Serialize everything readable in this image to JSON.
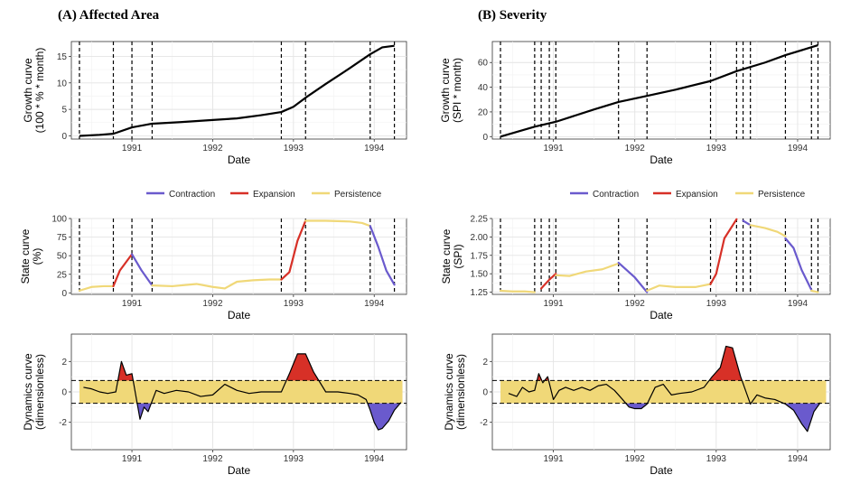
{
  "colors": {
    "contraction": "#6a5acd",
    "expansion": "#d73027",
    "persistence": "#f0d878",
    "band": "#f0d878"
  },
  "legend": {
    "items": [
      {
        "key": "contraction",
        "label": "Contraction"
      },
      {
        "key": "expansion",
        "label": "Expansion"
      },
      {
        "key": "persistence",
        "label": "Persistence"
      }
    ]
  },
  "chart_data": [
    {
      "panel": "A",
      "title": "(A)  Affected Area",
      "type": "line",
      "role": "growth",
      "xlabel": "Date",
      "ylabel": [
        "Growth curve",
        "(100 * % * month)"
      ],
      "xlim": [
        1990.25,
        1994.4
      ],
      "ylim": [
        -0.6,
        17.8
      ],
      "yticks": [
        0,
        5,
        10,
        15
      ],
      "xticks": [
        1991,
        1992,
        1993,
        1994
      ],
      "vlines": [
        1990.35,
        1990.77,
        1991.0,
        1991.25,
        1992.85,
        1993.15,
        1993.95,
        1994.25
      ],
      "x": [
        1990.35,
        1990.6,
        1990.77,
        1991.0,
        1991.25,
        1991.6,
        1992.0,
        1992.3,
        1992.6,
        1992.85,
        1993.0,
        1993.15,
        1993.4,
        1993.7,
        1993.95,
        1994.1,
        1994.25
      ],
      "y": [
        0,
        0.2,
        0.4,
        1.6,
        2.3,
        2.6,
        3.0,
        3.3,
        3.9,
        4.5,
        5.5,
        7.2,
        9.8,
        12.8,
        15.4,
        16.7,
        17.0
      ]
    },
    {
      "panel": "A",
      "type": "line",
      "role": "state",
      "xlabel": "Date",
      "ylabel": [
        "State curve",
        "(%)"
      ],
      "xlim": [
        1990.25,
        1994.4
      ],
      "ylim": [
        -2,
        100
      ],
      "yticks": [
        0,
        25,
        50,
        75,
        100
      ],
      "xticks": [
        1991,
        1992,
        1993,
        1994
      ],
      "vlines": [
        1990.35,
        1990.77,
        1991.0,
        1991.25,
        1992.85,
        1993.15,
        1993.95,
        1994.25
      ],
      "segments": [
        {
          "state": "persistence",
          "x": [
            1990.35,
            1990.5,
            1990.65,
            1990.77
          ],
          "y": [
            3,
            8,
            9,
            9
          ]
        },
        {
          "state": "expansion",
          "x": [
            1990.77,
            1990.85,
            1991.0
          ],
          "y": [
            9,
            30,
            52
          ]
        },
        {
          "state": "contraction",
          "x": [
            1991.0,
            1991.12,
            1991.25
          ],
          "y": [
            52,
            30,
            10
          ]
        },
        {
          "state": "persistence",
          "x": [
            1991.25,
            1991.5,
            1991.8,
            1992.0,
            1992.15,
            1992.3,
            1992.5,
            1992.7,
            1992.85
          ],
          "y": [
            10,
            9,
            12,
            8,
            6,
            15,
            17,
            18,
            18
          ]
        },
        {
          "state": "expansion",
          "x": [
            1992.85,
            1992.95,
            1993.05,
            1993.15
          ],
          "y": [
            18,
            28,
            70,
            97
          ]
        },
        {
          "state": "persistence",
          "x": [
            1993.15,
            1993.4,
            1993.7,
            1993.85,
            1993.95
          ],
          "y": [
            97,
            97,
            96,
            94,
            90
          ]
        },
        {
          "state": "contraction",
          "x": [
            1993.95,
            1994.05,
            1994.15,
            1994.25
          ],
          "y": [
            90,
            62,
            30,
            11
          ]
        }
      ]
    },
    {
      "panel": "A",
      "type": "area",
      "role": "dynamics",
      "xlabel": "Date",
      "ylabel": [
        "Dynamics curve",
        "(dimensionless)"
      ],
      "xlim": [
        1990.25,
        1994.4
      ],
      "ylim": [
        -3.8,
        3.8
      ],
      "yticks": [
        -2,
        0,
        2
      ],
      "xticks": [
        1991,
        1992,
        1993,
        1994
      ],
      "band": [
        -0.75,
        0.75
      ],
      "band_x": [
        1990.35,
        1994.35
      ],
      "x": [
        1990.4,
        1990.5,
        1990.6,
        1990.7,
        1990.8,
        1990.87,
        1990.93,
        1991.0,
        1991.05,
        1991.1,
        1991.15,
        1991.2,
        1991.3,
        1991.4,
        1991.55,
        1991.7,
        1991.85,
        1992.0,
        1992.15,
        1992.3,
        1992.45,
        1992.6,
        1992.75,
        1992.85,
        1992.95,
        1993.05,
        1993.15,
        1993.25,
        1993.4,
        1993.55,
        1993.7,
        1993.8,
        1993.9,
        1993.95,
        1994.0,
        1994.05,
        1994.1,
        1994.18,
        1994.25,
        1994.33
      ],
      "y": [
        0.3,
        0.2,
        0.0,
        -0.1,
        0.0,
        2.0,
        1.1,
        1.2,
        -0.3,
        -1.8,
        -1.0,
        -1.3,
        0.1,
        -0.1,
        0.1,
        0.0,
        -0.3,
        -0.2,
        0.5,
        0.1,
        -0.1,
        0.0,
        0.0,
        0.0,
        1.2,
        2.5,
        2.5,
        1.3,
        0.0,
        0.0,
        -0.1,
        -0.2,
        -0.5,
        -1.2,
        -2.0,
        -2.5,
        -2.4,
        -1.9,
        -1.2,
        -0.7
      ]
    },
    {
      "panel": "B",
      "title": "(B)  Severity",
      "type": "line",
      "role": "growth",
      "xlabel": "Date",
      "ylabel": [
        "Growth curve",
        "(SPI * month)"
      ],
      "xlim": [
        1990.25,
        1994.4
      ],
      "ylim": [
        -2,
        77
      ],
      "yticks": [
        0,
        20,
        40,
        60
      ],
      "xticks": [
        1991,
        1992,
        1993,
        1994
      ],
      "vlines": [
        1990.35,
        1990.77,
        1990.85,
        1990.95,
        1991.03,
        1991.8,
        1992.15,
        1992.93,
        1993.25,
        1993.33,
        1993.42,
        1993.85,
        1994.17,
        1994.25
      ],
      "x": [
        1990.35,
        1990.77,
        1991.03,
        1991.5,
        1991.8,
        1992.15,
        1992.5,
        1992.93,
        1993.25,
        1993.6,
        1993.85,
        1994.1,
        1994.25
      ],
      "y": [
        0,
        8,
        12,
        22,
        28,
        33,
        38,
        45,
        53,
        60,
        66,
        71,
        74
      ]
    },
    {
      "panel": "B",
      "type": "line",
      "role": "state",
      "xlabel": "Date",
      "ylabel": [
        "State curve",
        "(SPI)"
      ],
      "xlim": [
        1990.25,
        1994.4
      ],
      "ylim": [
        1.22,
        2.25
      ],
      "yticks": [
        1.25,
        1.5,
        1.75,
        2.0,
        2.25
      ],
      "xticks": [
        1991,
        1992,
        1993,
        1994
      ],
      "vlines": [
        1990.35,
        1990.77,
        1990.85,
        1990.95,
        1991.03,
        1991.8,
        1992.15,
        1992.93,
        1993.25,
        1993.33,
        1993.42,
        1993.85,
        1994.17,
        1994.25
      ],
      "segments": [
        {
          "state": "persistence",
          "x": [
            1990.35,
            1990.5,
            1990.65,
            1990.77
          ],
          "y": [
            1.27,
            1.26,
            1.26,
            1.25
          ]
        },
        {
          "state": "expansion",
          "x": [
            1990.85,
            1990.95,
            1991.03
          ],
          "y": [
            1.3,
            1.42,
            1.5
          ]
        },
        {
          "state": "persistence",
          "x": [
            1991.03,
            1991.2,
            1991.4,
            1991.6,
            1991.8
          ],
          "y": [
            1.48,
            1.47,
            1.53,
            1.56,
            1.64
          ]
        },
        {
          "state": "contraction",
          "x": [
            1991.8,
            1992.0,
            1992.15
          ],
          "y": [
            1.65,
            1.45,
            1.25
          ]
        },
        {
          "state": "persistence",
          "x": [
            1992.15,
            1992.3,
            1992.5,
            1992.75,
            1992.93
          ],
          "y": [
            1.27,
            1.34,
            1.32,
            1.32,
            1.36
          ]
        },
        {
          "state": "expansion",
          "x": [
            1992.93,
            1993.0,
            1993.1,
            1993.25
          ],
          "y": [
            1.36,
            1.5,
            1.98,
            2.24
          ]
        },
        {
          "state": "contraction",
          "x": [
            1993.33,
            1993.42
          ],
          "y": [
            2.22,
            2.16
          ]
        },
        {
          "state": "persistence",
          "x": [
            1993.42,
            1993.6,
            1993.75,
            1993.85
          ],
          "y": [
            2.16,
            2.12,
            2.07,
            2.01
          ]
        },
        {
          "state": "contraction",
          "x": [
            1993.85,
            1993.95,
            1994.05,
            1994.17
          ],
          "y": [
            1.98,
            1.85,
            1.55,
            1.28
          ]
        },
        {
          "state": "persistence",
          "x": [
            1994.17,
            1994.25
          ],
          "y": [
            1.27,
            1.25
          ]
        }
      ]
    },
    {
      "panel": "B",
      "type": "area",
      "role": "dynamics",
      "xlabel": "Date",
      "ylabel": [
        "Dynamics curve",
        "(dimensionless)"
      ],
      "xlim": [
        1990.25,
        1994.4
      ],
      "ylim": [
        -3.8,
        3.8
      ],
      "yticks": [
        -2,
        0,
        2
      ],
      "xticks": [
        1991,
        1992,
        1993,
        1994
      ],
      "band": [
        -0.75,
        0.75
      ],
      "band_x": [
        1990.35,
        1994.35
      ],
      "x": [
        1990.45,
        1990.55,
        1990.62,
        1990.7,
        1990.77,
        1990.82,
        1990.87,
        1990.93,
        1991.0,
        1991.07,
        1991.15,
        1991.25,
        1991.35,
        1991.45,
        1991.55,
        1991.65,
        1991.75,
        1991.85,
        1991.93,
        1992.0,
        1992.08,
        1992.15,
        1992.25,
        1992.35,
        1992.45,
        1992.55,
        1992.7,
        1992.85,
        1992.95,
        1993.05,
        1993.12,
        1993.2,
        1993.3,
        1993.42,
        1993.5,
        1993.6,
        1993.72,
        1993.85,
        1993.95,
        1994.05,
        1994.12,
        1994.2,
        1994.28
      ],
      "y": [
        -0.1,
        -0.3,
        0.3,
        0.0,
        0.1,
        1.2,
        0.6,
        1.0,
        -0.5,
        0.1,
        0.3,
        0.1,
        0.3,
        0.1,
        0.4,
        0.5,
        0.1,
        -0.5,
        -1.0,
        -1.1,
        -1.1,
        -0.8,
        0.3,
        0.5,
        -0.2,
        -0.1,
        0.0,
        0.3,
        1.0,
        1.6,
        3.0,
        2.9,
        1.0,
        -0.8,
        -0.2,
        -0.4,
        -0.5,
        -0.8,
        -1.2,
        -2.1,
        -2.6,
        -1.3,
        -0.7
      ]
    }
  ]
}
